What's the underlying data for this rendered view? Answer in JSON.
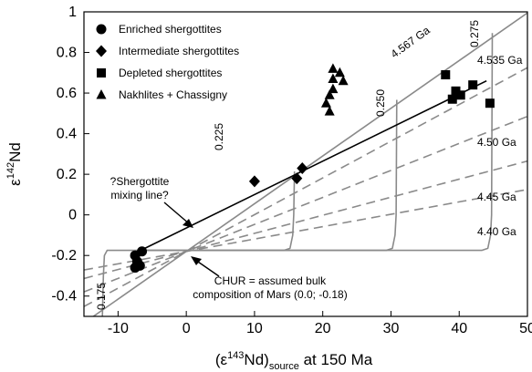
{
  "chart_data": {
    "type": "scatter",
    "xlim": [
      -15,
      50
    ],
    "ylim": [
      -0.5,
      1.0
    ],
    "x_ticks": [
      "-10",
      "0",
      "10",
      "20",
      "30",
      "40",
      "50"
    ],
    "y_ticks": [
      "-0.4",
      "-0.2",
      "0",
      "0.2",
      "0.4",
      "0.6",
      "0.8",
      "1"
    ],
    "x_tick_values": [
      -10,
      0,
      10,
      20,
      30,
      40,
      50
    ],
    "y_tick_values": [
      -0.4,
      -0.2,
      0,
      0.2,
      0.4,
      0.6,
      0.8,
      1.0
    ],
    "xlabel_parts": [
      "(ε",
      "143",
      "Nd)",
      "source",
      " at 150 Ma"
    ],
    "ylabel_parts": [
      "ε",
      "142",
      "Nd"
    ],
    "legend_position": "top-left",
    "series": [
      {
        "name": "Enriched shergottites",
        "marker": "circle",
        "points": [
          [
            -7.5,
            -0.2
          ],
          [
            -6.5,
            -0.18
          ],
          [
            -7.2,
            -0.23
          ],
          [
            -6.8,
            -0.25
          ],
          [
            -7.5,
            -0.26
          ]
        ]
      },
      {
        "name": "Intermediate shergottites",
        "marker": "diamond",
        "points": [
          [
            10.0,
            0.165
          ],
          [
            16.2,
            0.18
          ],
          [
            17.0,
            0.23
          ]
        ]
      },
      {
        "name": "Depleted shergottites",
        "marker": "square",
        "points": [
          [
            38.0,
            0.69
          ],
          [
            39.0,
            0.57
          ],
          [
            39.5,
            0.61
          ],
          [
            40.2,
            0.59
          ],
          [
            42.0,
            0.64
          ],
          [
            44.5,
            0.55
          ]
        ]
      },
      {
        "name": "Nakhlites + Chassigny",
        "marker": "triangle",
        "points": [
          [
            20.5,
            0.55
          ],
          [
            21.0,
            0.51
          ],
          [
            21.0,
            0.59
          ],
          [
            21.5,
            0.62
          ],
          [
            21.5,
            0.67
          ],
          [
            21.5,
            0.72
          ],
          [
            22.5,
            0.7
          ],
          [
            23.0,
            0.66
          ]
        ]
      }
    ],
    "isochrons": [
      {
        "label": "4.567 Ga",
        "slope": 0.0235
      },
      {
        "label": "4.535 Ga",
        "slope": 0.0181
      },
      {
        "label": "4.50 Ga",
        "slope": 0.0133
      },
      {
        "label": "4.45 Ga",
        "slope": 0.0089
      },
      {
        "label": "4.40 Ga",
        "slope": 0.0061
      }
    ],
    "source_curves": [
      {
        "label": "0.175",
        "x_vertical": -12.0
      },
      {
        "label": "0.225",
        "x_vertical": 15.5
      },
      {
        "label": "0.250",
        "x_vertical": 30.5
      },
      {
        "label": "0.275",
        "x_vertical": 44.5
      }
    ],
    "mixing_line": {
      "from": [
        -7.0,
        -0.18
      ],
      "to": [
        44.0,
        0.66
      ]
    },
    "annotations": {
      "mixing": [
        "?Shergottite",
        "mixing line?"
      ],
      "chur": [
        "CHUR = assumed bulk",
        "composition of Mars (0.0; -0.18)"
      ]
    },
    "colors": {
      "curves": "#8a8a8a",
      "points": "#000000"
    }
  }
}
